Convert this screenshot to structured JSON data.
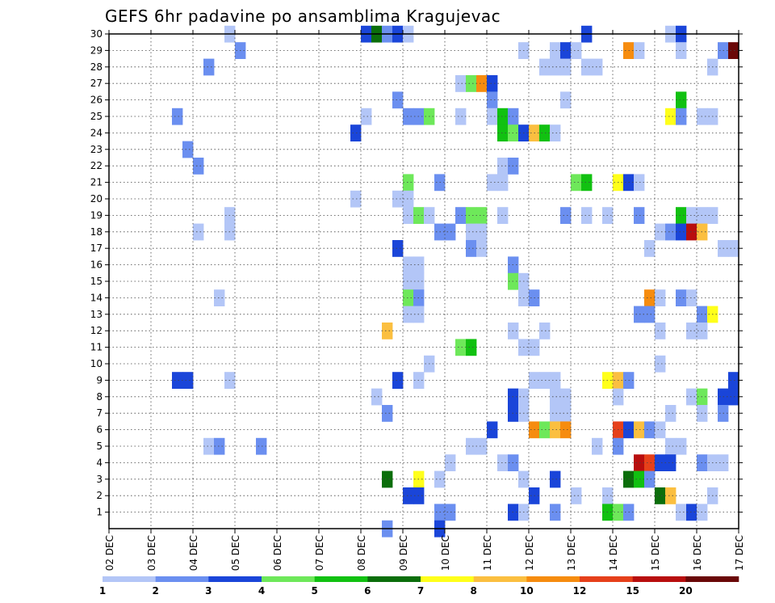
{
  "chart_data": {
    "type": "heatmap",
    "title": "GEFS 6hr padavine po ansamblima Kragujevac",
    "xlabel": "",
    "ylabel": "",
    "x_tick_labels": [
      "02 DEC",
      "03 DEC",
      "04 DEC",
      "05 DEC",
      "06 DEC",
      "07 DEC",
      "08 DEC",
      "09 DEC",
      "10 DEC",
      "11 DEC",
      "12 DEC",
      "13 DEC",
      "14 DEC",
      "15 DEC",
      "16 DEC",
      "17 DEC"
    ],
    "x_range_steps": [
      0,
      60
    ],
    "steps_per_day": 4,
    "y_tick_labels": [
      "1",
      "2",
      "3",
      "4",
      "5",
      "6",
      "7",
      "8",
      "9",
      "10",
      "11",
      "12",
      "13",
      "14",
      "15",
      "16",
      "17",
      "18",
      "19",
      "20",
      "21",
      "22",
      "23",
      "24",
      "25",
      "26",
      "27",
      "28",
      "29",
      "30"
    ],
    "y_range": [
      0,
      30
    ],
    "grid": true,
    "legend": {
      "placement": "bottom",
      "labels": [
        "1",
        "2",
        "3",
        "4",
        "5",
        "6",
        "7",
        "8",
        "10",
        "12",
        "15",
        "20"
      ],
      "colors": [
        "#b3c6f7",
        "#6b8ff0",
        "#1a45d9",
        "#6ee85a",
        "#11c111",
        "#0b6e0b",
        "#ffff1a",
        "#fbbf40",
        "#f68c0f",
        "#e6401a",
        "#b80e0e",
        "#6a0808"
      ]
    },
    "colors": {
      "c1": "#b3c6f7",
      "c2": "#6b8ff0",
      "c3": "#1a45d9",
      "c4": "#6ee85a",
      "c5": "#11c111",
      "c6": "#0b6e0b",
      "c7": "#ffff1a",
      "c8": "#fbbf40",
      "c10": "#f68c0f",
      "c12": "#e6401a",
      "c15": "#b80e0e",
      "c20": "#6a0808"
    },
    "cells": [
      {
        "m": 30,
        "t": 12,
        "v": 1.5
      },
      {
        "m": 30,
        "t": 25,
        "v": 3.5
      },
      {
        "m": 30,
        "t": 26,
        "v": 6.5
      },
      {
        "m": 30,
        "t": 27,
        "v": 2.5
      },
      {
        "m": 30,
        "t": 28,
        "v": 3.5
      },
      {
        "m": 30,
        "t": 29,
        "v": 1.5
      },
      {
        "m": 30,
        "t": 46,
        "v": 3.5
      },
      {
        "m": 30,
        "t": 54,
        "v": 1.5
      },
      {
        "m": 30,
        "t": 55,
        "v": 3.5
      },
      {
        "m": 29,
        "t": 13,
        "v": 2.5
      },
      {
        "m": 29,
        "t": 40,
        "v": 1.5
      },
      {
        "m": 29,
        "t": 43,
        "v": 1.5
      },
      {
        "m": 29,
        "t": 44,
        "v": 3.5
      },
      {
        "m": 29,
        "t": 45,
        "v": 1.5
      },
      {
        "m": 29,
        "t": 50,
        "v": 11
      },
      {
        "m": 29,
        "t": 51,
        "v": 1.5
      },
      {
        "m": 29,
        "t": 55,
        "v": 1.5
      },
      {
        "m": 29,
        "t": 59,
        "v": 2.5
      },
      {
        "m": 29,
        "t": 60,
        "v": 22
      },
      {
        "m": 28,
        "t": 10,
        "v": 2.5
      },
      {
        "m": 28,
        "t": 42,
        "v": 1.5
      },
      {
        "m": 28,
        "t": 43,
        "v": 1.5
      },
      {
        "m": 28,
        "t": 44,
        "v": 1.5
      },
      {
        "m": 28,
        "t": 46,
        "v": 1.5
      },
      {
        "m": 28,
        "t": 47,
        "v": 1.5
      },
      {
        "m": 28,
        "t": 58,
        "v": 1.5
      },
      {
        "m": 27,
        "t": 34,
        "v": 1.5
      },
      {
        "m": 27,
        "t": 35,
        "v": 4.5
      },
      {
        "m": 27,
        "t": 36,
        "v": 11
      },
      {
        "m": 27,
        "t": 37,
        "v": 3.5
      },
      {
        "m": 26,
        "t": 28,
        "v": 2.5
      },
      {
        "m": 26,
        "t": 37,
        "v": 2.5
      },
      {
        "m": 26,
        "t": 44,
        "v": 1.5
      },
      {
        "m": 26,
        "t": 55,
        "v": 5.5
      },
      {
        "m": 25,
        "t": 7,
        "v": 2.5
      },
      {
        "m": 25,
        "t": 25,
        "v": 1.5
      },
      {
        "m": 25,
        "t": 29,
        "v": 2.5
      },
      {
        "m": 25,
        "t": 30,
        "v": 2.5
      },
      {
        "m": 25,
        "t": 31,
        "v": 4.5
      },
      {
        "m": 25,
        "t": 34,
        "v": 1.5
      },
      {
        "m": 25,
        "t": 37,
        "v": 1.5
      },
      {
        "m": 25,
        "t": 38,
        "v": 5.5
      },
      {
        "m": 25,
        "t": 39,
        "v": 2.5
      },
      {
        "m": 25,
        "t": 54,
        "v": 7.5
      },
      {
        "m": 25,
        "t": 55,
        "v": 2.5
      },
      {
        "m": 25,
        "t": 57,
        "v": 1.5
      },
      {
        "m": 25,
        "t": 58,
        "v": 1.5
      },
      {
        "m": 24,
        "t": 24,
        "v": 3.5
      },
      {
        "m": 24,
        "t": 38,
        "v": 5.5
      },
      {
        "m": 24,
        "t": 39,
        "v": 4.5
      },
      {
        "m": 24,
        "t": 40,
        "v": 3.5
      },
      {
        "m": 24,
        "t": 41,
        "v": 9
      },
      {
        "m": 24,
        "t": 42,
        "v": 5.5
      },
      {
        "m": 24,
        "t": 43,
        "v": 1.5
      },
      {
        "m": 23,
        "t": 8,
        "v": 2.5
      },
      {
        "m": 22,
        "t": 9,
        "v": 2.5
      },
      {
        "m": 22,
        "t": 38,
        "v": 1.5
      },
      {
        "m": 22,
        "t": 39,
        "v": 2.5
      },
      {
        "m": 21,
        "t": 29,
        "v": 4.5
      },
      {
        "m": 21,
        "t": 32,
        "v": 2.5
      },
      {
        "m": 21,
        "t": 37,
        "v": 1.5
      },
      {
        "m": 21,
        "t": 38,
        "v": 1.5
      },
      {
        "m": 21,
        "t": 45,
        "v": 4.5
      },
      {
        "m": 21,
        "t": 46,
        "v": 5.5
      },
      {
        "m": 21,
        "t": 49,
        "v": 7.5
      },
      {
        "m": 21,
        "t": 50,
        "v": 3.5
      },
      {
        "m": 21,
        "t": 51,
        "v": 1.5
      },
      {
        "m": 20,
        "t": 24,
        "v": 1.5
      },
      {
        "m": 20,
        "t": 28,
        "v": 1.5
      },
      {
        "m": 20,
        "t": 29,
        "v": 1.5
      },
      {
        "m": 19,
        "t": 12,
        "v": 1.5
      },
      {
        "m": 19,
        "t": 29,
        "v": 1.5
      },
      {
        "m": 19,
        "t": 30,
        "v": 4.5
      },
      {
        "m": 19,
        "t": 31,
        "v": 1.5
      },
      {
        "m": 19,
        "t": 34,
        "v": 2.5
      },
      {
        "m": 19,
        "t": 35,
        "v": 4.5
      },
      {
        "m": 19,
        "t": 36,
        "v": 4.5
      },
      {
        "m": 19,
        "t": 38,
        "v": 1.5
      },
      {
        "m": 19,
        "t": 44,
        "v": 2.5
      },
      {
        "m": 19,
        "t": 46,
        "v": 1.5
      },
      {
        "m": 19,
        "t": 48,
        "v": 1.5
      },
      {
        "m": 19,
        "t": 51,
        "v": 2.5
      },
      {
        "m": 19,
        "t": 55,
        "v": 5.5
      },
      {
        "m": 19,
        "t": 56,
        "v": 1.5
      },
      {
        "m": 19,
        "t": 57,
        "v": 1.5
      },
      {
        "m": 19,
        "t": 58,
        "v": 1.5
      },
      {
        "m": 18,
        "t": 9,
        "v": 1.5
      },
      {
        "m": 18,
        "t": 12,
        "v": 1.5
      },
      {
        "m": 18,
        "t": 32,
        "v": 2.5
      },
      {
        "m": 18,
        "t": 33,
        "v": 2.5
      },
      {
        "m": 18,
        "t": 35,
        "v": 1.5
      },
      {
        "m": 18,
        "t": 36,
        "v": 1.5
      },
      {
        "m": 18,
        "t": 53,
        "v": 1.5
      },
      {
        "m": 18,
        "t": 54,
        "v": 2.5
      },
      {
        "m": 18,
        "t": 55,
        "v": 3.5
      },
      {
        "m": 18,
        "t": 56,
        "v": 17
      },
      {
        "m": 18,
        "t": 57,
        "v": 9
      },
      {
        "m": 17,
        "t": 28,
        "v": 3.5
      },
      {
        "m": 17,
        "t": 35,
        "v": 2.5
      },
      {
        "m": 17,
        "t": 36,
        "v": 1.5
      },
      {
        "m": 17,
        "t": 52,
        "v": 1.5
      },
      {
        "m": 17,
        "t": 59,
        "v": 1.5
      },
      {
        "m": 17,
        "t": 60,
        "v": 1.5
      },
      {
        "m": 16,
        "t": 29,
        "v": 1.5
      },
      {
        "m": 16,
        "t": 30,
        "v": 1.5
      },
      {
        "m": 16,
        "t": 39,
        "v": 2.5
      },
      {
        "m": 15,
        "t": 29,
        "v": 1.5
      },
      {
        "m": 15,
        "t": 30,
        "v": 1.5
      },
      {
        "m": 15,
        "t": 39,
        "v": 4.5
      },
      {
        "m": 15,
        "t": 40,
        "v": 1.5
      },
      {
        "m": 14,
        "t": 11,
        "v": 1.5
      },
      {
        "m": 14,
        "t": 29,
        "v": 4.5
      },
      {
        "m": 14,
        "t": 30,
        "v": 2.5
      },
      {
        "m": 14,
        "t": 40,
        "v": 1.5
      },
      {
        "m": 14,
        "t": 41,
        "v": 2.5
      },
      {
        "m": 14,
        "t": 52,
        "v": 11
      },
      {
        "m": 14,
        "t": 53,
        "v": 1.5
      },
      {
        "m": 14,
        "t": 55,
        "v": 2.5
      },
      {
        "m": 14,
        "t": 56,
        "v": 1.5
      },
      {
        "m": 13,
        "t": 29,
        "v": 1.5
      },
      {
        "m": 13,
        "t": 30,
        "v": 1.5
      },
      {
        "m": 13,
        "t": 51,
        "v": 2.5
      },
      {
        "m": 13,
        "t": 52,
        "v": 2.5
      },
      {
        "m": 13,
        "t": 57,
        "v": 2.5
      },
      {
        "m": 13,
        "t": 58,
        "v": 7.5
      },
      {
        "m": 12,
        "t": 27,
        "v": 9
      },
      {
        "m": 12,
        "t": 39,
        "v": 1.5
      },
      {
        "m": 12,
        "t": 42,
        "v": 1.5
      },
      {
        "m": 12,
        "t": 53,
        "v": 1.5
      },
      {
        "m": 12,
        "t": 56,
        "v": 1.5
      },
      {
        "m": 12,
        "t": 57,
        "v": 1.5
      },
      {
        "m": 11,
        "t": 34,
        "v": 4.5
      },
      {
        "m": 11,
        "t": 35,
        "v": 5.5
      },
      {
        "m": 11,
        "t": 40,
        "v": 1.5
      },
      {
        "m": 11,
        "t": 41,
        "v": 1.5
      },
      {
        "m": 10,
        "t": 31,
        "v": 1.5
      },
      {
        "m": 10,
        "t": 53,
        "v": 1.5
      },
      {
        "m": 9,
        "t": 7,
        "v": 3.5
      },
      {
        "m": 9,
        "t": 8,
        "v": 3.5
      },
      {
        "m": 9,
        "t": 12,
        "v": 1.5
      },
      {
        "m": 9,
        "t": 28,
        "v": 3.5
      },
      {
        "m": 9,
        "t": 30,
        "v": 1.5
      },
      {
        "m": 9,
        "t": 41,
        "v": 1.5
      },
      {
        "m": 9,
        "t": 42,
        "v": 1.5
      },
      {
        "m": 9,
        "t": 43,
        "v": 1.5
      },
      {
        "m": 9,
        "t": 48,
        "v": 7.5
      },
      {
        "m": 9,
        "t": 49,
        "v": 9
      },
      {
        "m": 9,
        "t": 50,
        "v": 2.5
      },
      {
        "m": 9,
        "t": 60,
        "v": 3.5
      },
      {
        "m": 8,
        "t": 26,
        "v": 1.5
      },
      {
        "m": 8,
        "t": 39,
        "v": 3.5
      },
      {
        "m": 8,
        "t": 40,
        "v": 1.5
      },
      {
        "m": 8,
        "t": 43,
        "v": 1.5
      },
      {
        "m": 8,
        "t": 44,
        "v": 1.5
      },
      {
        "m": 8,
        "t": 49,
        "v": 1.5
      },
      {
        "m": 8,
        "t": 56,
        "v": 1.5
      },
      {
        "m": 8,
        "t": 57,
        "v": 4.5
      },
      {
        "m": 8,
        "t": 59,
        "v": 3.5
      },
      {
        "m": 8,
        "t": 60,
        "v": 3.5
      },
      {
        "m": 7,
        "t": 27,
        "v": 2.5
      },
      {
        "m": 7,
        "t": 39,
        "v": 3.5
      },
      {
        "m": 7,
        "t": 40,
        "v": 1.5
      },
      {
        "m": 7,
        "t": 43,
        "v": 1.5
      },
      {
        "m": 7,
        "t": 44,
        "v": 1.5
      },
      {
        "m": 7,
        "t": 54,
        "v": 1.5
      },
      {
        "m": 7,
        "t": 57,
        "v": 1.5
      },
      {
        "m": 7,
        "t": 59,
        "v": 2.5
      },
      {
        "m": 6,
        "t": 37,
        "v": 3.5
      },
      {
        "m": 6,
        "t": 41,
        "v": 11
      },
      {
        "m": 6,
        "t": 42,
        "v": 4.5
      },
      {
        "m": 6,
        "t": 43,
        "v": 9
      },
      {
        "m": 6,
        "t": 44,
        "v": 11
      },
      {
        "m": 6,
        "t": 49,
        "v": 13
      },
      {
        "m": 6,
        "t": 50,
        "v": 3.5
      },
      {
        "m": 6,
        "t": 51,
        "v": 9
      },
      {
        "m": 6,
        "t": 52,
        "v": 2.5
      },
      {
        "m": 6,
        "t": 53,
        "v": 1.5
      },
      {
        "m": 5,
        "t": 10,
        "v": 1.5
      },
      {
        "m": 5,
        "t": 11,
        "v": 2.5
      },
      {
        "m": 5,
        "t": 15,
        "v": 2.5
      },
      {
        "m": 5,
        "t": 35,
        "v": 1.5
      },
      {
        "m": 5,
        "t": 36,
        "v": 1.5
      },
      {
        "m": 5,
        "t": 47,
        "v": 1.5
      },
      {
        "m": 5,
        "t": 49,
        "v": 2.5
      },
      {
        "m": 5,
        "t": 54,
        "v": 1.5
      },
      {
        "m": 5,
        "t": 55,
        "v": 1.5
      },
      {
        "m": 4,
        "t": 33,
        "v": 1.5
      },
      {
        "m": 4,
        "t": 38,
        "v": 1.5
      },
      {
        "m": 4,
        "t": 39,
        "v": 2.5
      },
      {
        "m": 4,
        "t": 51,
        "v": 17
      },
      {
        "m": 4,
        "t": 52,
        "v": 13
      },
      {
        "m": 4,
        "t": 53,
        "v": 3.5
      },
      {
        "m": 4,
        "t": 54,
        "v": 3.5
      },
      {
        "m": 4,
        "t": 57,
        "v": 2.5
      },
      {
        "m": 4,
        "t": 58,
        "v": 1.5
      },
      {
        "m": 4,
        "t": 59,
        "v": 1.5
      },
      {
        "m": 3,
        "t": 27,
        "v": 6.5
      },
      {
        "m": 3,
        "t": 30,
        "v": 7.5
      },
      {
        "m": 3,
        "t": 32,
        "v": 1.5
      },
      {
        "m": 3,
        "t": 40,
        "v": 1.5
      },
      {
        "m": 3,
        "t": 43,
        "v": 3.5
      },
      {
        "m": 3,
        "t": 50,
        "v": 6.5
      },
      {
        "m": 3,
        "t": 51,
        "v": 5.5
      },
      {
        "m": 3,
        "t": 52,
        "v": 2.5
      },
      {
        "m": 2,
        "t": 29,
        "v": 3.5
      },
      {
        "m": 2,
        "t": 30,
        "v": 3.5
      },
      {
        "m": 2,
        "t": 41,
        "v": 3.5
      },
      {
        "m": 2,
        "t": 45,
        "v": 1.5
      },
      {
        "m": 2,
        "t": 48,
        "v": 1.5
      },
      {
        "m": 2,
        "t": 53,
        "v": 6.5
      },
      {
        "m": 2,
        "t": 54,
        "v": 9
      },
      {
        "m": 2,
        "t": 58,
        "v": 1.5
      },
      {
        "m": 1,
        "t": 32,
        "v": 2.5
      },
      {
        "m": 1,
        "t": 33,
        "v": 2.5
      },
      {
        "m": 1,
        "t": 39,
        "v": 3.5
      },
      {
        "m": 1,
        "t": 40,
        "v": 1.5
      },
      {
        "m": 1,
        "t": 43,
        "v": 2.5
      },
      {
        "m": 1,
        "t": 48,
        "v": 5.5
      },
      {
        "m": 1,
        "t": 49,
        "v": 4.5
      },
      {
        "m": 1,
        "t": 50,
        "v": 2.5
      },
      {
        "m": 1,
        "t": 55,
        "v": 1.5
      },
      {
        "m": 1,
        "t": 56,
        "v": 3.5
      },
      {
        "m": 1,
        "t": 57,
        "v": 1.5
      },
      {
        "m": 0,
        "t": 27,
        "v": 2.5
      },
      {
        "m": 0,
        "t": 32,
        "v": 3.5
      }
    ]
  }
}
